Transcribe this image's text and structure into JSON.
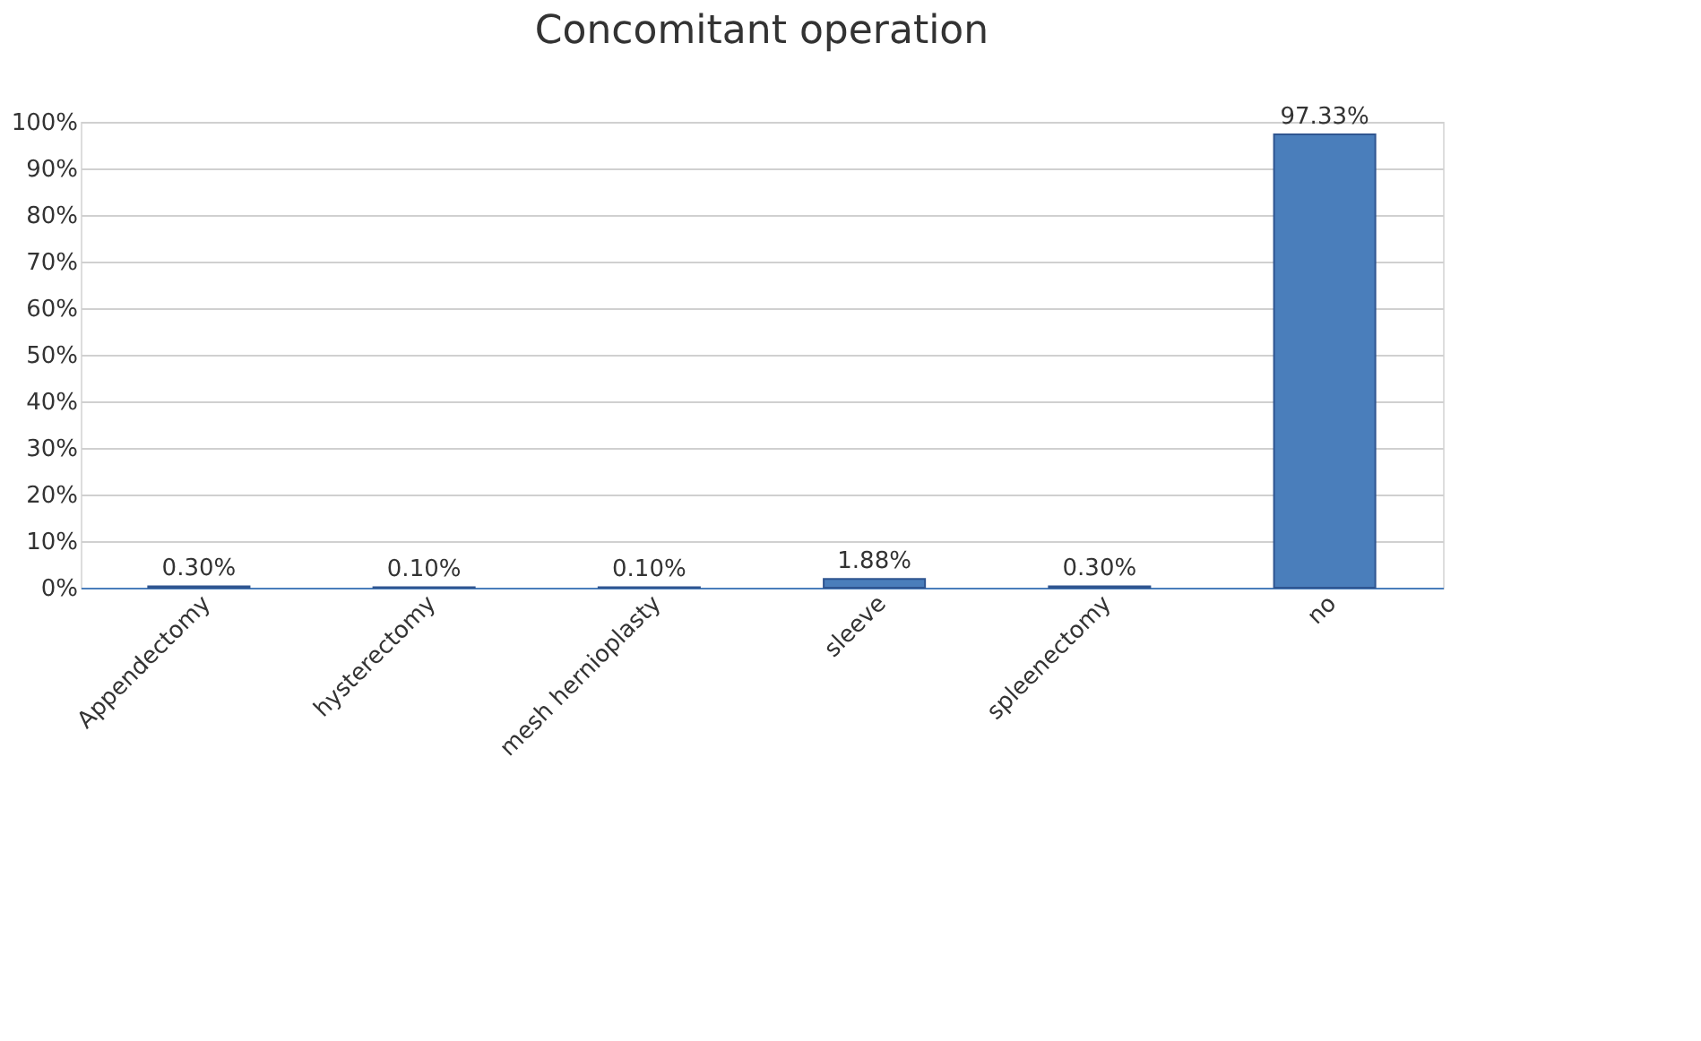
{
  "chart_data": {
    "type": "bar",
    "title": "Concomitant operation",
    "categories": [
      "Appendectomy",
      "hysterectomy",
      "mesh hernioplasty",
      "sleeve",
      "spleenectomy",
      "no"
    ],
    "values": [
      0.3,
      0.1,
      0.1,
      1.88,
      0.3,
      97.33
    ],
    "value_labels": [
      "0.30%",
      "0.10%",
      "0.10%",
      "1.88%",
      "0.30%",
      "97.33%"
    ],
    "color": "#4a7ebb",
    "ylim": [
      0,
      100
    ],
    "yticks": [
      {
        "value": 0,
        "label": "0%"
      },
      {
        "value": 10,
        "label": "10%"
      },
      {
        "value": 20,
        "label": "20%"
      },
      {
        "value": 30,
        "label": "30%"
      },
      {
        "value": 40,
        "label": "40%"
      },
      {
        "value": 50,
        "label": "50%"
      },
      {
        "value": 60,
        "label": "60%"
      },
      {
        "value": 70,
        "label": "70%"
      },
      {
        "value": 80,
        "label": "80%"
      },
      {
        "value": 90,
        "label": "90%"
      },
      {
        "value": 100,
        "label": "100%"
      }
    ],
    "grid": "y"
  }
}
